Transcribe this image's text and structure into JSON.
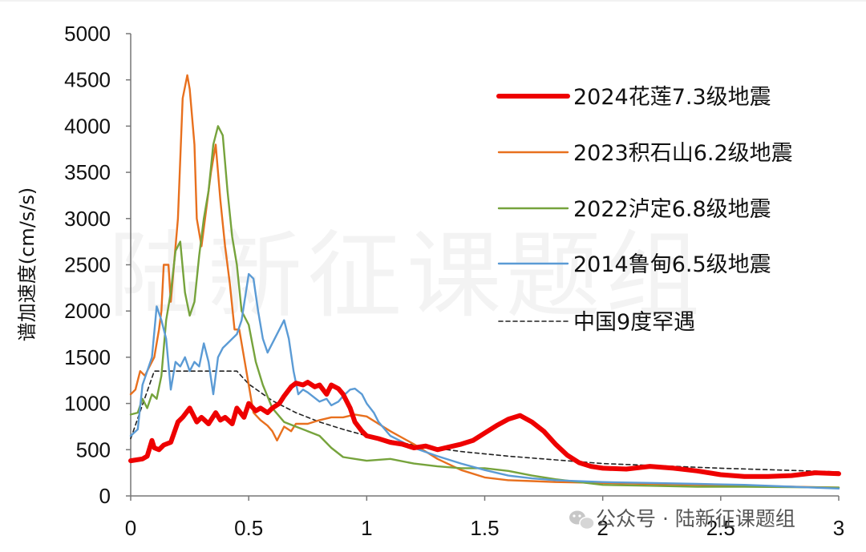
{
  "watermark": {
    "text": "陆新征课题组",
    "brand": "公众号 · 陆新征课题组",
    "icon": "wechat-icon"
  },
  "chart_data": {
    "type": "line",
    "title": "",
    "xlabel": "",
    "ylabel": "谱加速度(cm/s/s)",
    "xlim": [
      0,
      3
    ],
    "ylim": [
      0,
      5000
    ],
    "xticks": [
      "0",
      "0.5",
      "1",
      "1.5",
      "2",
      "2.5",
      "3"
    ],
    "yticks": [
      "0",
      "500",
      "1000",
      "1500",
      "2000",
      "2500",
      "3000",
      "3500",
      "4000",
      "4500",
      "5000"
    ],
    "grid": false,
    "legend_position": "top-right",
    "series": [
      {
        "name": "2024花莲7.3级地震",
        "color": "#ee0000",
        "style": "solid-thick",
        "x": [
          0,
          0.05,
          0.07,
          0.09,
          0.1,
          0.12,
          0.14,
          0.17,
          0.2,
          0.22,
          0.25,
          0.28,
          0.3,
          0.33,
          0.36,
          0.38,
          0.4,
          0.43,
          0.45,
          0.48,
          0.5,
          0.53,
          0.55,
          0.58,
          0.6,
          0.63,
          0.65,
          0.68,
          0.7,
          0.73,
          0.75,
          0.78,
          0.8,
          0.83,
          0.85,
          0.88,
          0.9,
          0.93,
          0.95,
          0.98,
          1.0,
          1.05,
          1.1,
          1.15,
          1.2,
          1.25,
          1.3,
          1.35,
          1.4,
          1.45,
          1.5,
          1.55,
          1.6,
          1.65,
          1.7,
          1.75,
          1.8,
          1.85,
          1.9,
          1.95,
          2.0,
          2.1,
          2.2,
          2.3,
          2.4,
          2.5,
          2.6,
          2.7,
          2.8,
          2.9,
          3.0
        ],
        "y": [
          380,
          400,
          430,
          600,
          520,
          500,
          550,
          580,
          800,
          850,
          950,
          800,
          850,
          780,
          900,
          820,
          850,
          780,
          950,
          850,
          1000,
          920,
          950,
          900,
          950,
          1000,
          1080,
          1180,
          1220,
          1200,
          1230,
          1180,
          1200,
          1100,
          1200,
          1160,
          1100,
          950,
          800,
          700,
          650,
          620,
          580,
          560,
          520,
          540,
          500,
          530,
          560,
          600,
          680,
          760,
          830,
          870,
          800,
          700,
          560,
          440,
          360,
          320,
          300,
          290,
          320,
          300,
          270,
          230,
          210,
          210,
          220,
          250,
          240
        ]
      },
      {
        "name": "2023积石山6.2级地震",
        "color": "#e8701e",
        "style": "solid",
        "x": [
          0,
          0.02,
          0.04,
          0.06,
          0.08,
          0.1,
          0.12,
          0.13,
          0.14,
          0.16,
          0.17,
          0.18,
          0.2,
          0.22,
          0.24,
          0.25,
          0.27,
          0.28,
          0.3,
          0.32,
          0.34,
          0.36,
          0.38,
          0.4,
          0.42,
          0.44,
          0.46,
          0.48,
          0.5,
          0.52,
          0.55,
          0.58,
          0.6,
          0.62,
          0.65,
          0.68,
          0.7,
          0.75,
          0.8,
          0.85,
          0.9,
          0.95,
          1.0,
          1.05,
          1.1,
          1.2,
          1.3,
          1.4,
          1.5,
          1.6,
          1.7,
          1.8,
          2.0,
          2.2,
          2.4,
          2.6,
          2.8,
          3.0
        ],
        "y": [
          1100,
          1150,
          1350,
          1300,
          1400,
          1500,
          1800,
          2000,
          2500,
          2500,
          2100,
          2400,
          3000,
          4300,
          4550,
          4400,
          3800,
          3000,
          2700,
          3100,
          3500,
          3800,
          3200,
          2700,
          2300,
          1800,
          1800,
          1500,
          1200,
          900,
          820,
          760,
          700,
          600,
          750,
          700,
          780,
          780,
          820,
          850,
          850,
          880,
          860,
          780,
          700,
          560,
          400,
          280,
          200,
          170,
          160,
          150,
          140,
          130,
          120,
          110,
          100,
          90
        ]
      },
      {
        "name": "2022泸定6.8级地震",
        "color": "#76a33c",
        "style": "solid",
        "x": [
          0,
          0.03,
          0.05,
          0.07,
          0.09,
          0.11,
          0.13,
          0.15,
          0.17,
          0.19,
          0.21,
          0.23,
          0.25,
          0.27,
          0.29,
          0.31,
          0.33,
          0.35,
          0.37,
          0.39,
          0.41,
          0.43,
          0.45,
          0.47,
          0.5,
          0.53,
          0.56,
          0.6,
          0.65,
          0.7,
          0.75,
          0.8,
          0.85,
          0.9,
          0.95,
          1.0,
          1.1,
          1.2,
          1.3,
          1.4,
          1.5,
          1.6,
          1.7,
          1.8,
          1.9,
          2.0,
          2.2,
          2.4,
          2.6,
          2.8,
          3.0
        ],
        "y": [
          880,
          900,
          1050,
          950,
          1100,
          1050,
          1300,
          1900,
          2200,
          2650,
          2750,
          2200,
          1950,
          2100,
          2600,
          3000,
          3300,
          3800,
          4000,
          3900,
          3300,
          2800,
          2500,
          2000,
          1850,
          1450,
          1200,
          950,
          800,
          750,
          700,
          650,
          520,
          420,
          400,
          380,
          400,
          350,
          320,
          300,
          300,
          270,
          220,
          180,
          150,
          120,
          110,
          100,
          100,
          95,
          90
        ]
      },
      {
        "name": "2014鲁甸6.5级地震",
        "color": "#5b9bd5",
        "style": "solid",
        "x": [
          0,
          0.03,
          0.05,
          0.07,
          0.09,
          0.11,
          0.13,
          0.15,
          0.17,
          0.19,
          0.21,
          0.23,
          0.25,
          0.27,
          0.29,
          0.31,
          0.33,
          0.35,
          0.37,
          0.39,
          0.41,
          0.43,
          0.45,
          0.47,
          0.5,
          0.52,
          0.54,
          0.56,
          0.58,
          0.6,
          0.63,
          0.65,
          0.67,
          0.69,
          0.71,
          0.73,
          0.75,
          0.78,
          0.8,
          0.83,
          0.85,
          0.88,
          0.9,
          0.93,
          0.95,
          0.98,
          1.0,
          1.03,
          1.05,
          1.1,
          1.2,
          1.3,
          1.4,
          1.5,
          1.6,
          1.7,
          1.8,
          2.0,
          2.2,
          2.4,
          2.6,
          2.8,
          3.0
        ],
        "y": [
          650,
          720,
          1200,
          1350,
          1500,
          2050,
          1900,
          1700,
          1150,
          1450,
          1400,
          1500,
          1350,
          1450,
          1400,
          1650,
          1450,
          1100,
          1500,
          1600,
          1650,
          1700,
          1750,
          1900,
          2400,
          2350,
          2000,
          1700,
          1550,
          1650,
          1800,
          1900,
          1700,
          1350,
          1100,
          1150,
          1120,
          1060,
          1020,
          1050,
          980,
          1020,
          1080,
          1150,
          1160,
          1100,
          1000,
          900,
          800,
          650,
          520,
          430,
          350,
          280,
          220,
          190,
          170,
          150,
          140,
          130,
          120,
          100,
          80
        ]
      },
      {
        "name": "中国9度罕遇",
        "color": "#222222",
        "style": "dashed",
        "x": [
          0,
          0.1,
          0.45,
          0.5,
          0.6,
          0.7,
          0.8,
          0.9,
          1.0,
          1.2,
          1.4,
          1.6,
          1.8,
          2.0,
          2.5,
          3.0
        ],
        "y": [
          620,
          1350,
          1350,
          1210,
          1030,
          900,
          800,
          720,
          650,
          550,
          480,
          430,
          390,
          350,
          300,
          260
        ]
      }
    ]
  }
}
